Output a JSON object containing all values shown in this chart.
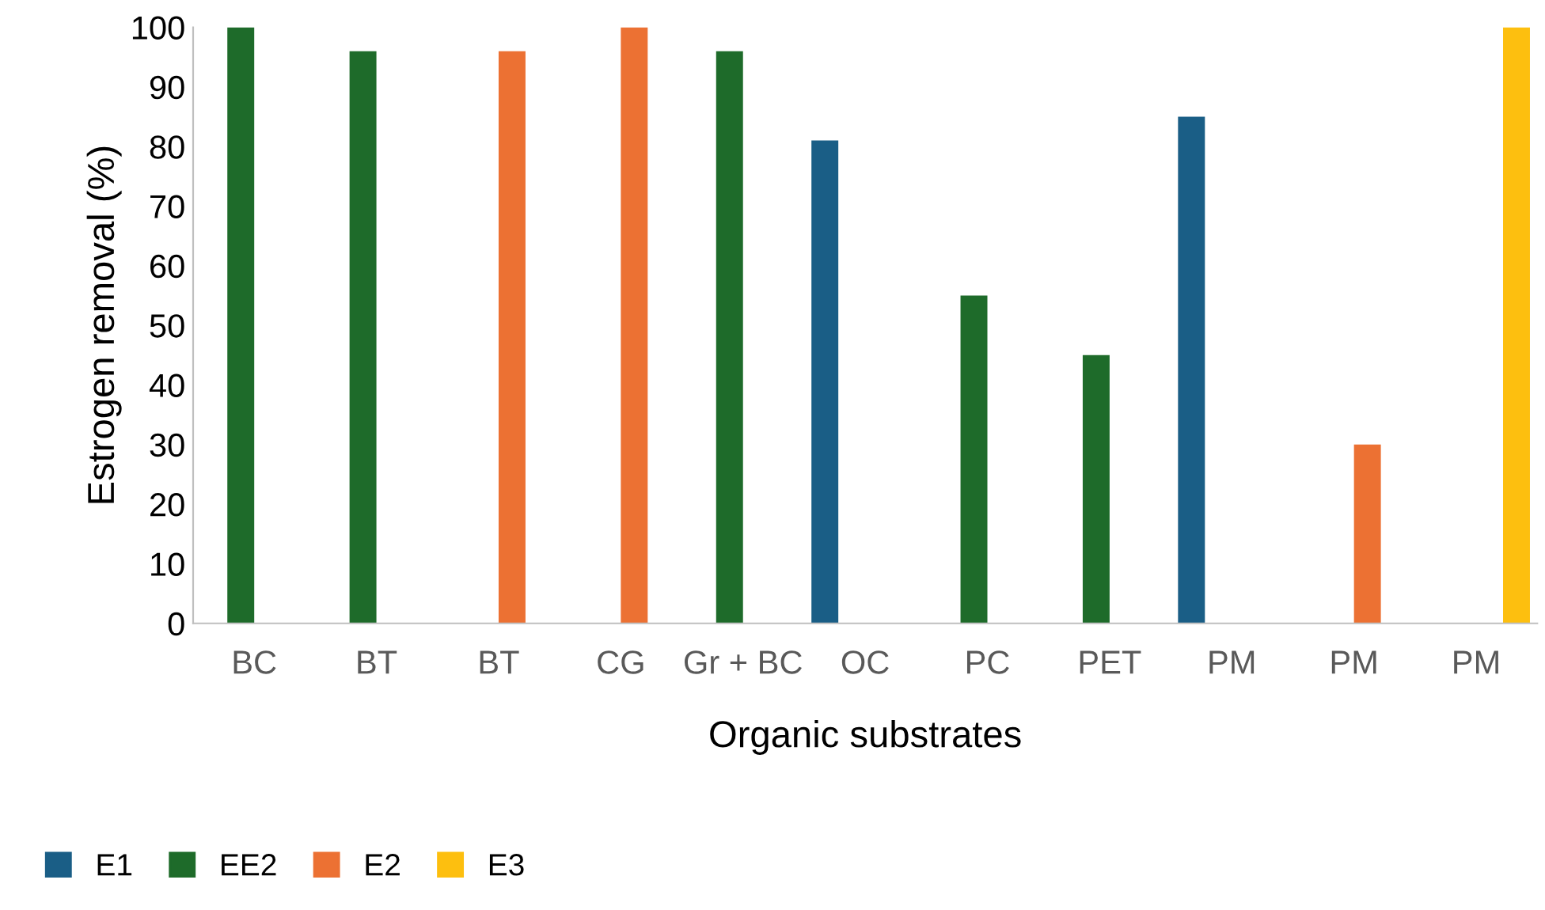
{
  "chart_data": {
    "type": "bar",
    "xlabel": "Organic substrates",
    "ylabel": "Estrogen removal (%)",
    "categories": [
      "BC",
      "BT",
      "BT",
      "CG",
      "Gr + BC",
      "OC",
      "PC",
      "PET",
      "PM",
      "PM",
      "PM"
    ],
    "series": [
      {
        "name": "E1",
        "color": "#1a5e86",
        "values": [
          null,
          null,
          null,
          null,
          null,
          81,
          null,
          null,
          85,
          null,
          null
        ]
      },
      {
        "name": "EE2",
        "color": "#1e6b2a",
        "values": [
          100,
          96,
          null,
          null,
          96,
          null,
          55,
          45,
          null,
          null,
          null
        ]
      },
      {
        "name": "E2",
        "color": "#ec7133",
        "values": [
          null,
          null,
          96,
          100,
          null,
          null,
          null,
          null,
          null,
          30,
          null
        ]
      },
      {
        "name": "E3",
        "color": "#fdbf0f",
        "values": [
          null,
          null,
          null,
          null,
          null,
          null,
          null,
          null,
          null,
          null,
          100
        ]
      }
    ],
    "ylim": [
      0,
      100
    ],
    "yticks": [
      0,
      10,
      20,
      30,
      40,
      50,
      60,
      70,
      80,
      90,
      100
    ],
    "grid": false,
    "legend": "bottom left"
  }
}
